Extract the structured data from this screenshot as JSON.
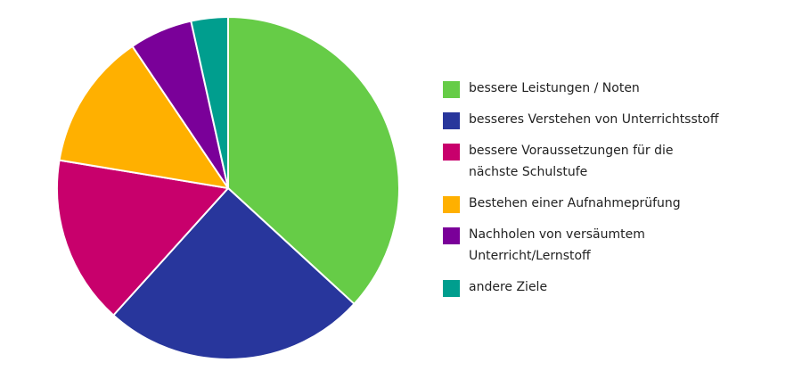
{
  "chart_data": {
    "type": "pie",
    "title": "",
    "legend_position": "right",
    "slices": [
      {
        "label": "bessere Leistungen / Noten",
        "value": 37,
        "color": "#66cc47"
      },
      {
        "label": "besseres Verstehen von Unterrichtsstoff",
        "value": 25,
        "color": "#28369c"
      },
      {
        "label": "bessere Voraussetzungen für die nächste Schulstufe",
        "value": 16,
        "color": "#c8006c"
      },
      {
        "label": "Bestehen einer Aufnahmeprüfung",
        "value": 13,
        "color": "#ffb000"
      },
      {
        "label": "Nachholen von versäumtem Unterricht/Lernstoff",
        "value": 6,
        "color": "#7a0099"
      },
      {
        "label": "andere Ziele",
        "value": 3.5,
        "color": "#009e8e"
      }
    ]
  }
}
